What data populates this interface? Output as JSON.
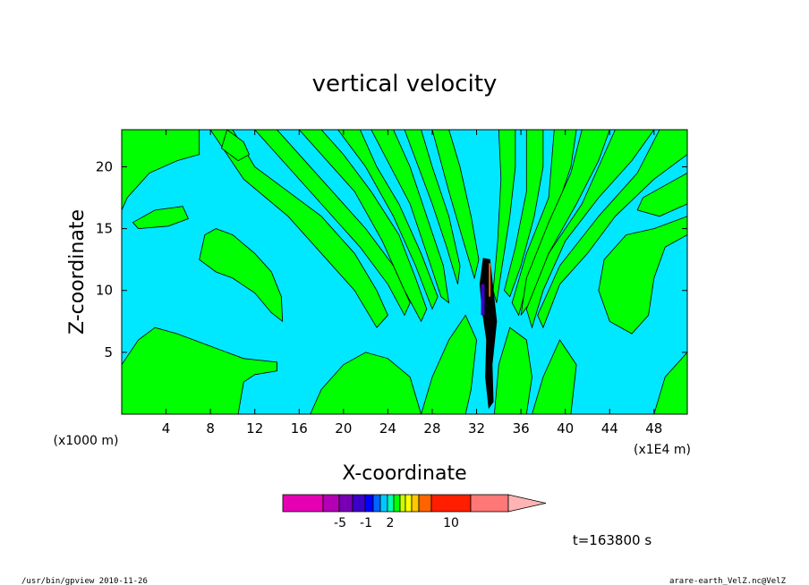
{
  "chart_data": {
    "type": "heatmap",
    "title": "vertical velocity",
    "xlabel": "X-coordinate",
    "ylabel": "Z-coordinate",
    "x_unit_left": "(x1000 m)",
    "x_unit_right": "(x1E4 m)",
    "xlim": [
      0,
      51
    ],
    "ylim": [
      0,
      23
    ],
    "x_ticks": [
      4,
      8,
      12,
      16,
      20,
      24,
      28,
      32,
      36,
      40,
      44,
      48
    ],
    "y_ticks": [
      5,
      10,
      15,
      20
    ],
    "field_colors": {
      "background_negative": "#00e8ff",
      "positive_band": "#00ff00",
      "updraft_core": "#000000",
      "contour_line": "#000000"
    },
    "colorbar": {
      "colors": [
        "#e600b4",
        "#b400b4",
        "#7800b4",
        "#3c00c8",
        "#0000ff",
        "#0064ff",
        "#00c8ff",
        "#00ffb4",
        "#00ff00",
        "#c8ff00",
        "#ffff00",
        "#ffc800",
        "#ff6400",
        "#ff1e00",
        "#ff7878",
        "#ffb4b4"
      ],
      "labels": [
        "-5",
        "-1",
        "2",
        "10"
      ]
    },
    "time_label": "t=163800 s",
    "grid": false
  },
  "footer": {
    "left": "/usr/bin/gpview   2010-11-26",
    "right": "arare-earth_VelZ.nc@VelZ"
  }
}
